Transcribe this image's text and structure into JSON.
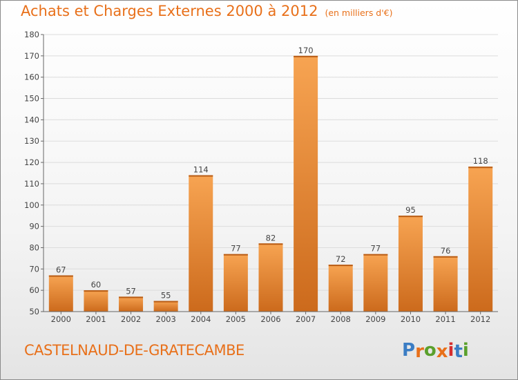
{
  "header": {
    "title": "Achats et Charges Externes 2000 à 2012",
    "subtitle": "(en milliers d'€)"
  },
  "footer": {
    "commune": "CASTELNAUD-DE-GRATECAMBE",
    "logo_text": "Proxiti",
    "logo_colors": [
      "#3b7dc4",
      "#e8701a",
      "#5aa02c",
      "#e8701a",
      "#d62c2c",
      "#3b7dc4",
      "#5aa02c"
    ]
  },
  "colors": {
    "title": "#e8701a",
    "bar_top": "#f7a452",
    "bar_bottom": "#cc6a1c",
    "grid": "#dcdcdc",
    "axis": "#666666"
  },
  "chart_data": {
    "type": "bar",
    "title": "Achats et Charges Externes 2000 à 2012",
    "subtitle": "(en milliers d'€)",
    "categories": [
      "2000",
      "2001",
      "2002",
      "2003",
      "2004",
      "2005",
      "2006",
      "2007",
      "2008",
      "2009",
      "2010",
      "2011",
      "2012"
    ],
    "values": [
      67,
      60,
      57,
      55,
      114,
      77,
      82,
      170,
      72,
      77,
      95,
      76,
      118
    ],
    "ylim": [
      50,
      180
    ],
    "yticks": [
      50,
      60,
      70,
      80,
      90,
      100,
      110,
      120,
      130,
      140,
      150,
      160,
      170,
      180
    ],
    "grid": true,
    "data_labels": true
  }
}
